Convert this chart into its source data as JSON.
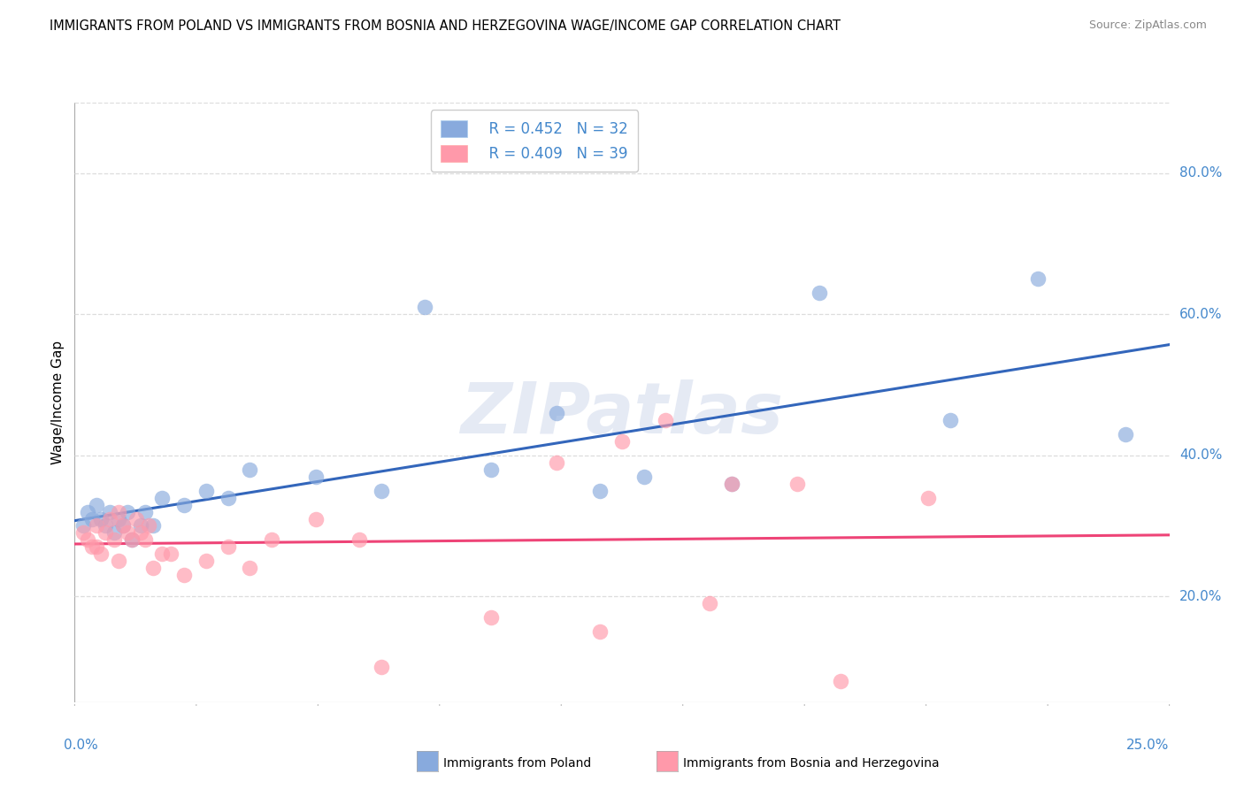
{
  "title": "IMMIGRANTS FROM POLAND VS IMMIGRANTS FROM BOSNIA AND HERZEGOVINA WAGE/INCOME GAP CORRELATION CHART",
  "source": "Source: ZipAtlas.com",
  "ylabel": "Wage/Income Gap",
  "legend1_label": "R = 0.452   N = 32",
  "legend2_label": "R = 0.409   N = 39",
  "watermark": "ZIPatlas",
  "xlim": [
    0.0,
    25.0
  ],
  "ylim": [
    5.0,
    90.0
  ],
  "ytick_vals": [
    20.0,
    40.0,
    60.0,
    80.0
  ],
  "ytick_labels": [
    "20.0%",
    "40.0%",
    "60.0%",
    "80.0%"
  ],
  "blue_scatter_color": "#88AADD",
  "pink_scatter_color": "#FF99AA",
  "blue_line_color": "#3366BB",
  "pink_line_color": "#EE4477",
  "axis_tick_color": "#4488CC",
  "grid_color": "#DDDDDD",
  "poland_x": [
    0.2,
    0.3,
    0.4,
    0.5,
    0.6,
    0.7,
    0.8,
    0.9,
    1.0,
    1.1,
    1.2,
    1.3,
    1.5,
    1.6,
    1.8,
    2.0,
    2.5,
    3.0,
    3.5,
    4.0,
    5.5,
    7.0,
    8.0,
    9.5,
    11.0,
    12.0,
    13.0,
    15.0,
    17.0,
    20.0,
    22.0,
    24.0
  ],
  "poland_y": [
    30,
    32,
    31,
    33,
    31,
    30,
    32,
    29,
    31,
    30,
    32,
    28,
    30,
    32,
    30,
    34,
    33,
    35,
    34,
    38,
    37,
    35,
    61,
    38,
    46,
    35,
    37,
    36,
    63,
    45,
    65,
    43
  ],
  "bosnia_x": [
    0.2,
    0.3,
    0.4,
    0.5,
    0.5,
    0.6,
    0.7,
    0.8,
    0.9,
    1.0,
    1.0,
    1.1,
    1.2,
    1.3,
    1.4,
    1.5,
    1.6,
    1.7,
    1.8,
    2.0,
    2.2,
    2.5,
    3.0,
    3.5,
    4.0,
    4.5,
    5.5,
    6.5,
    7.0,
    9.5,
    11.0,
    12.0,
    13.5,
    14.5,
    15.0,
    16.5,
    17.5,
    19.5,
    12.5
  ],
  "bosnia_y": [
    29,
    28,
    27,
    30,
    27,
    26,
    29,
    31,
    28,
    25,
    32,
    30,
    29,
    28,
    31,
    29,
    28,
    30,
    24,
    26,
    26,
    23,
    25,
    27,
    24,
    28,
    31,
    28,
    10,
    17,
    39,
    15,
    45,
    19,
    36,
    36,
    8,
    34,
    42
  ]
}
